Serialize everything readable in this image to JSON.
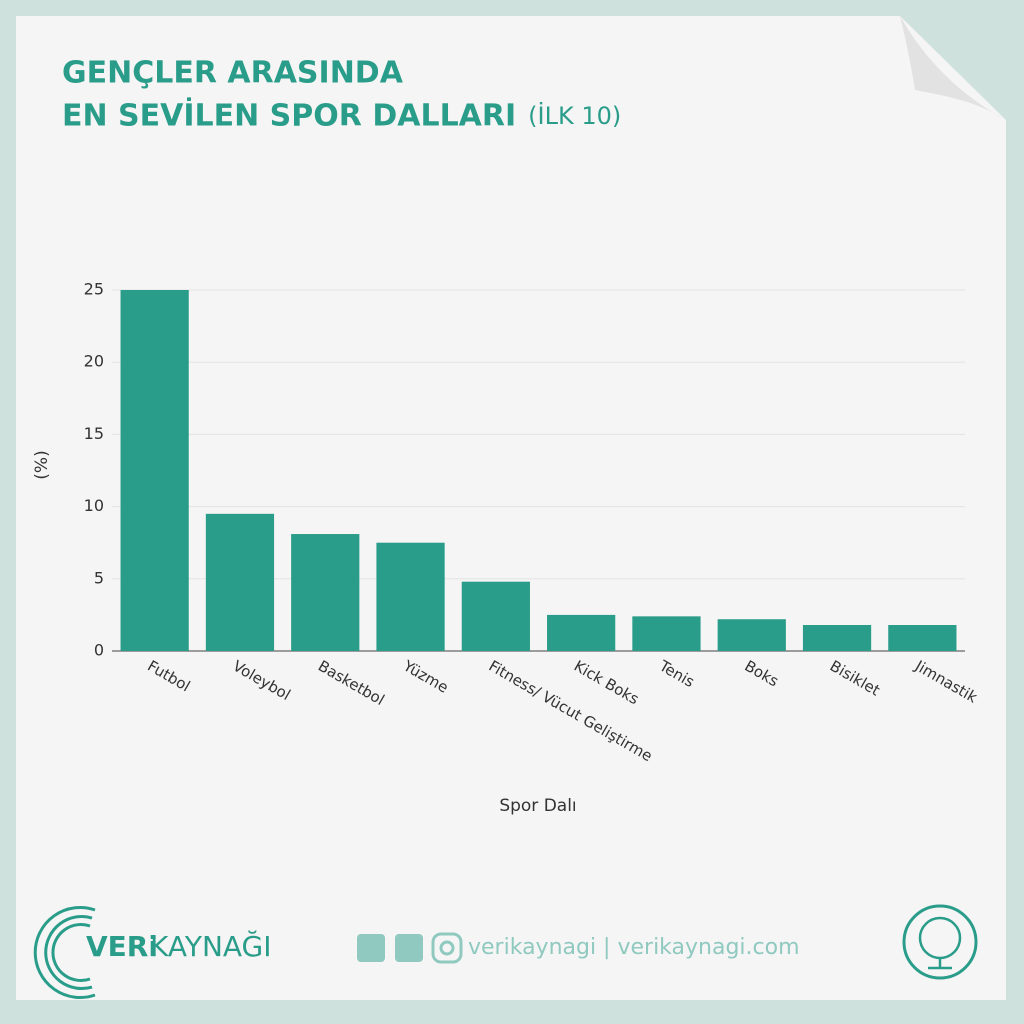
{
  "chart_data": {
    "type": "bar",
    "title": [
      "GENÇLER ARASINDA",
      "EN SEVİLEN SPOR DALLARI"
    ],
    "subtitle": "(İLK 10)",
    "y_label": "(%)",
    "x_label": "Spor Dalı",
    "categories": [
      "Futbol",
      "Voleybol",
      "Basketbol",
      "Yüzme",
      "Fitness/ Vücut Geliştirme",
      "Kick Boks",
      "Tenis",
      "Boks",
      "Bisiklet",
      "Jimnastik"
    ],
    "values": [
      25,
      9.5,
      8.1,
      7.5,
      4.8,
      2.5,
      2.4,
      2.2,
      1.8,
      1.8
    ],
    "color": "#2a9d8a",
    "ylim": [
      0,
      25
    ],
    "yticks": [
      0,
      5,
      10,
      15,
      20,
      25
    ],
    "grid": true
  },
  "footer": {
    "logo": [
      "VERi",
      "KAYNAĞI"
    ],
    "social": "verikaynagi | verikaynagi.com"
  }
}
